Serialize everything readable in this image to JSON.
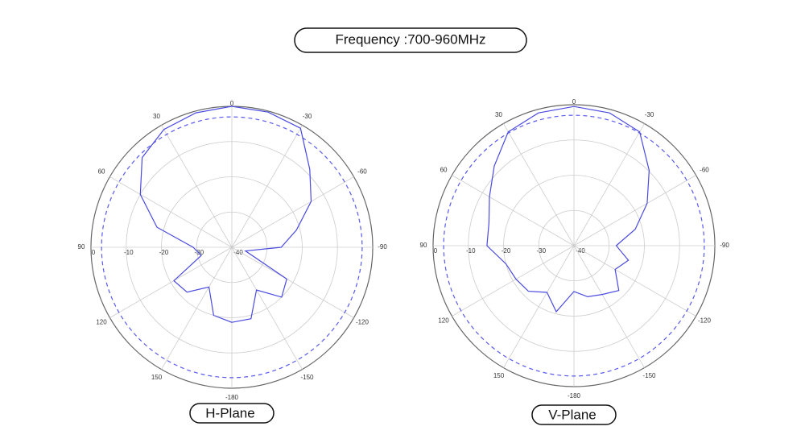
{
  "title": "Frequency :700-960MHz",
  "chart_data": [
    {
      "type": "polar",
      "title": "H-Plane",
      "angles": [
        -180,
        -165,
        -150,
        -135,
        -120,
        -105,
        -90,
        -75,
        -60,
        -45,
        -30,
        -15,
        0,
        15,
        30,
        45,
        60,
        75,
        90,
        105,
        120,
        135,
        150,
        165
      ],
      "values": [
        -18.7,
        -19,
        -26,
        -20,
        -22,
        -36,
        -26,
        -21,
        -14,
        -8.7,
        -1,
        -0.3,
        0,
        -0.5,
        -1.4,
        -4,
        -10,
        -18,
        -29,
        -31,
        -21,
        -22,
        -27,
        -20
      ],
      "color": "#4a4ae0",
      "rlim": [
        -40,
        0
      ],
      "rticks": [
        0,
        -10,
        -20,
        -30,
        -40
      ],
      "angle_ticks": [
        0,
        -30,
        -60,
        -90,
        -120,
        -150,
        -180,
        150,
        120,
        90,
        60,
        30
      ],
      "reference_circle": -3,
      "reference_color": "#5a5aee",
      "grid": true
    },
    {
      "type": "polar",
      "title": "V-Plane",
      "angles": [
        -180,
        -165,
        -150,
        -135,
        -120,
        -105,
        -90,
        -75,
        -60,
        -45,
        -30,
        -15,
        0,
        15,
        30,
        45,
        60,
        75,
        90,
        105,
        120,
        135,
        150,
        165
      ],
      "values": [
        -27,
        -25,
        -24,
        -22,
        -26.5,
        -24,
        -28,
        -22,
        -16,
        -9.8,
        -2.7,
        -1,
        -0.5,
        -1,
        -2.7,
        -8,
        -12.3,
        -15,
        -15.3,
        -20,
        -21,
        -21.7,
        -24.7,
        -20.6
      ],
      "color": "#4a4ae0",
      "rlim": [
        -40,
        0
      ],
      "rticks": [
        0,
        -10,
        -20,
        -30,
        -40
      ],
      "angle_ticks": [
        0,
        -30,
        -60,
        -90,
        -120,
        -150,
        -180,
        150,
        120,
        90,
        60,
        30
      ],
      "reference_circle": -3,
      "reference_color": "#5a5aee",
      "grid": true
    }
  ]
}
